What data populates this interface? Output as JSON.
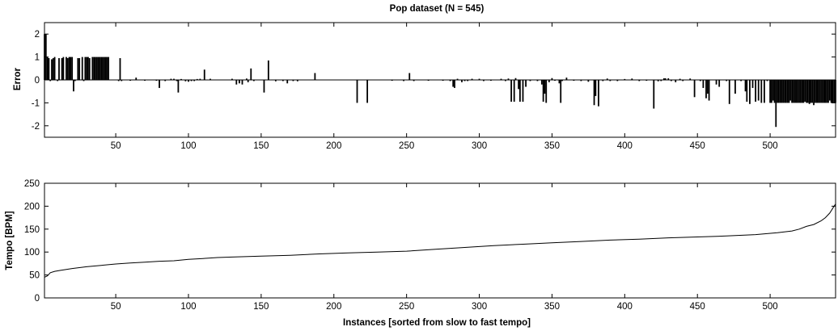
{
  "chart_data": [
    {
      "type": "bar",
      "title": "Pop dataset (N = 545)",
      "xlabel": "",
      "ylabel": "Error",
      "xlim": [
        1,
        545
      ],
      "ylim": [
        -2.5,
        2.5
      ],
      "xticks": [
        50,
        100,
        150,
        200,
        250,
        300,
        350,
        400,
        450,
        500
      ],
      "yticks": [
        -2,
        -1,
        0,
        1,
        2
      ],
      "grid": false,
      "points": [
        [
          1,
          2
        ],
        [
          2,
          2
        ],
        [
          3,
          1
        ],
        [
          4,
          0.95
        ],
        [
          5,
          -0.05
        ],
        [
          6,
          0.9
        ],
        [
          7,
          0.95
        ],
        [
          8,
          1
        ],
        [
          10,
          -0.05
        ],
        [
          11,
          0.95
        ],
        [
          13,
          0.95
        ],
        [
          14,
          1
        ],
        [
          16,
          1
        ],
        [
          17,
          0.95
        ],
        [
          18,
          1
        ],
        [
          19,
          1
        ],
        [
          20,
          1
        ],
        [
          21,
          -0.5
        ],
        [
          22,
          -0.05
        ],
        [
          24,
          0.95
        ],
        [
          25,
          0.95
        ],
        [
          27,
          1
        ],
        [
          28,
          -0.05
        ],
        [
          29,
          1
        ],
        [
          30,
          1
        ],
        [
          31,
          1
        ],
        [
          32,
          0.95
        ],
        [
          34,
          1
        ],
        [
          35,
          1
        ],
        [
          36,
          1
        ],
        [
          37,
          1
        ],
        [
          38,
          1
        ],
        [
          39,
          1
        ],
        [
          40,
          1
        ],
        [
          41,
          1
        ],
        [
          42,
          1
        ],
        [
          43,
          1
        ],
        [
          44,
          1
        ],
        [
          45,
          1
        ],
        [
          52,
          -0.05
        ],
        [
          53,
          0.95
        ],
        [
          54,
          -0.05
        ],
        [
          60,
          -0.02
        ],
        [
          64,
          0.1
        ],
        [
          70,
          -0.02
        ],
        [
          78,
          -0.03
        ],
        [
          80,
          -0.35
        ],
        [
          84,
          -0.05
        ],
        [
          88,
          0.05
        ],
        [
          90,
          0.05
        ],
        [
          92,
          -0.05
        ],
        [
          93,
          -0.55
        ],
        [
          95,
          0.04
        ],
        [
          98,
          -0.06
        ],
        [
          100,
          -0.08
        ],
        [
          102,
          -0.05
        ],
        [
          104,
          -0.05
        ],
        [
          106,
          0.04
        ],
        [
          108,
          0.05
        ],
        [
          111,
          0.45
        ],
        [
          115,
          0.05
        ],
        [
          130,
          0.05
        ],
        [
          133,
          -0.2
        ],
        [
          135,
          -0.15
        ],
        [
          137,
          -0.2
        ],
        [
          140,
          0.06
        ],
        [
          141,
          -0.1
        ],
        [
          143,
          0.5
        ],
        [
          145,
          -0.05
        ],
        [
          152,
          -0.55
        ],
        [
          155,
          0.85
        ],
        [
          160,
          -0.06
        ],
        [
          165,
          -0.05
        ],
        [
          168,
          -0.15
        ],
        [
          172,
          -0.05
        ],
        [
          175,
          -0.06
        ],
        [
          187,
          0.3
        ],
        [
          216,
          -1
        ],
        [
          223,
          -1
        ],
        [
          240,
          -0.02
        ],
        [
          248,
          -0.05
        ],
        [
          252,
          0.3
        ],
        [
          255,
          -0.05
        ],
        [
          265,
          -0.03
        ],
        [
          275,
          -0.02
        ],
        [
          280,
          -0.05
        ],
        [
          282,
          -0.3
        ],
        [
          283,
          -0.35
        ],
        [
          285,
          0.05
        ],
        [
          288,
          -0.1
        ],
        [
          290,
          -0.05
        ],
        [
          292,
          -0.05
        ],
        [
          295,
          0.05
        ],
        [
          300,
          0.05
        ],
        [
          303,
          -0.05
        ],
        [
          308,
          -0.02
        ],
        [
          315,
          0.05
        ],
        [
          318,
          -0.05
        ],
        [
          320,
          0.06
        ],
        [
          322,
          -0.95
        ],
        [
          324,
          -0.95
        ],
        [
          325,
          0.08
        ],
        [
          327,
          -0.4
        ],
        [
          328,
          -0.95
        ],
        [
          330,
          -0.95
        ],
        [
          332,
          -0.3
        ],
        [
          335,
          -0.05
        ],
        [
          340,
          -0.05
        ],
        [
          343,
          -0.2
        ],
        [
          344,
          -0.95
        ],
        [
          345,
          -0.6
        ],
        [
          346,
          -1
        ],
        [
          348,
          -0.1
        ],
        [
          350,
          0.08
        ],
        [
          352,
          -0.02
        ],
        [
          355,
          -0.15
        ],
        [
          356,
          -1
        ],
        [
          357,
          -0.05
        ],
        [
          360,
          0.1
        ],
        [
          365,
          -0.02
        ],
        [
          370,
          -0.05
        ],
        [
          375,
          -0.08
        ],
        [
          379,
          -1.1
        ],
        [
          380,
          -0.7
        ],
        [
          382,
          -1.15
        ],
        [
          385,
          -0.05
        ],
        [
          388,
          0.06
        ],
        [
          390,
          -0.05
        ],
        [
          395,
          -0.05
        ],
        [
          400,
          0.04
        ],
        [
          405,
          0.06
        ],
        [
          410,
          -0.05
        ],
        [
          415,
          -0.03
        ],
        [
          420,
          -1.25
        ],
        [
          423,
          -0.06
        ],
        [
          425,
          -0.05
        ],
        [
          427,
          0.07
        ],
        [
          428,
          0.07
        ],
        [
          430,
          0.07
        ],
        [
          432,
          -0.05
        ],
        [
          435,
          -0.1
        ],
        [
          438,
          0.05
        ],
        [
          440,
          -0.05
        ],
        [
          445,
          0.06
        ],
        [
          448,
          -0.75
        ],
        [
          452,
          -0.05
        ],
        [
          454,
          -0.35
        ],
        [
          456,
          -0.8
        ],
        [
          457,
          -0.6
        ],
        [
          458,
          -0.9
        ],
        [
          463,
          -0.2
        ],
        [
          465,
          -0.3
        ],
        [
          470,
          -0.05
        ],
        [
          472,
          -1.05
        ],
        [
          476,
          -0.6
        ],
        [
          480,
          -0.05
        ],
        [
          483,
          -0.5
        ],
        [
          484,
          -0.95
        ],
        [
          486,
          -1.05
        ],
        [
          488,
          -0.35
        ],
        [
          490,
          -0.95
        ],
        [
          492,
          -0.9
        ],
        [
          494,
          -1
        ],
        [
          496,
          -1
        ],
        [
          498,
          -0.05
        ],
        [
          500,
          -1
        ],
        [
          501,
          -1
        ],
        [
          502,
          -0.9
        ],
        [
          503,
          -1
        ],
        [
          504,
          -2.05
        ],
        [
          505,
          -1
        ],
        [
          506,
          -1
        ],
        [
          507,
          -1
        ],
        [
          508,
          -1
        ],
        [
          509,
          -1
        ],
        [
          510,
          -1
        ],
        [
          511,
          -1
        ],
        [
          512,
          -1
        ],
        [
          513,
          -1
        ],
        [
          514,
          -0.9
        ],
        [
          515,
          -1
        ],
        [
          516,
          -1
        ],
        [
          517,
          -1
        ],
        [
          518,
          -1
        ],
        [
          519,
          -1
        ],
        [
          520,
          -1
        ],
        [
          521,
          -1
        ],
        [
          522,
          -1
        ],
        [
          523,
          -1
        ],
        [
          524,
          -0.95
        ],
        [
          525,
          -1
        ],
        [
          526,
          -1
        ],
        [
          527,
          -1.05
        ],
        [
          528,
          -1
        ],
        [
          529,
          -1
        ],
        [
          530,
          -1.1
        ],
        [
          531,
          -1
        ],
        [
          532,
          -1
        ],
        [
          533,
          -1
        ],
        [
          534,
          -1
        ],
        [
          535,
          -1
        ],
        [
          536,
          -1
        ],
        [
          537,
          -1
        ],
        [
          538,
          -1
        ],
        [
          539,
          -1
        ],
        [
          540,
          -1
        ],
        [
          541,
          -0.9
        ],
        [
          542,
          -1
        ],
        [
          543,
          -1
        ],
        [
          544,
          -1
        ],
        [
          545,
          -1
        ]
      ]
    },
    {
      "type": "line",
      "title": "",
      "xlabel": "Instances [sorted from slow to fast tempo]",
      "ylabel": "Tempo [BPM]",
      "xlim": [
        1,
        545
      ],
      "ylim": [
        0,
        250
      ],
      "xticks": [
        50,
        100,
        150,
        200,
        250,
        300,
        350,
        400,
        450,
        500
      ],
      "yticks": [
        0,
        50,
        100,
        150,
        200,
        250
      ],
      "grid": false,
      "points": [
        [
          1,
          45
        ],
        [
          3,
          48
        ],
        [
          5,
          55
        ],
        [
          8,
          58
        ],
        [
          12,
          60
        ],
        [
          20,
          64
        ],
        [
          30,
          68
        ],
        [
          40,
          71
        ],
        [
          50,
          74
        ],
        [
          60,
          76
        ],
        [
          70,
          78
        ],
        [
          80,
          80
        ],
        [
          90,
          81
        ],
        [
          100,
          84
        ],
        [
          110,
          86
        ],
        [
          120,
          88
        ],
        [
          130,
          89
        ],
        [
          150,
          91
        ],
        [
          170,
          93
        ],
        [
          190,
          96
        ],
        [
          210,
          98
        ],
        [
          230,
          100
        ],
        [
          250,
          102
        ],
        [
          270,
          106
        ],
        [
          290,
          110
        ],
        [
          310,
          114
        ],
        [
          330,
          117
        ],
        [
          350,
          120
        ],
        [
          370,
          123
        ],
        [
          390,
          126
        ],
        [
          410,
          128
        ],
        [
          430,
          131
        ],
        [
          450,
          133
        ],
        [
          470,
          135
        ],
        [
          490,
          138
        ],
        [
          505,
          142
        ],
        [
          515,
          146
        ],
        [
          520,
          150
        ],
        [
          525,
          156
        ],
        [
          530,
          160
        ],
        [
          535,
          168
        ],
        [
          538,
          175
        ],
        [
          541,
          185
        ],
        [
          543,
          195
        ],
        [
          545,
          205
        ]
      ]
    }
  ]
}
